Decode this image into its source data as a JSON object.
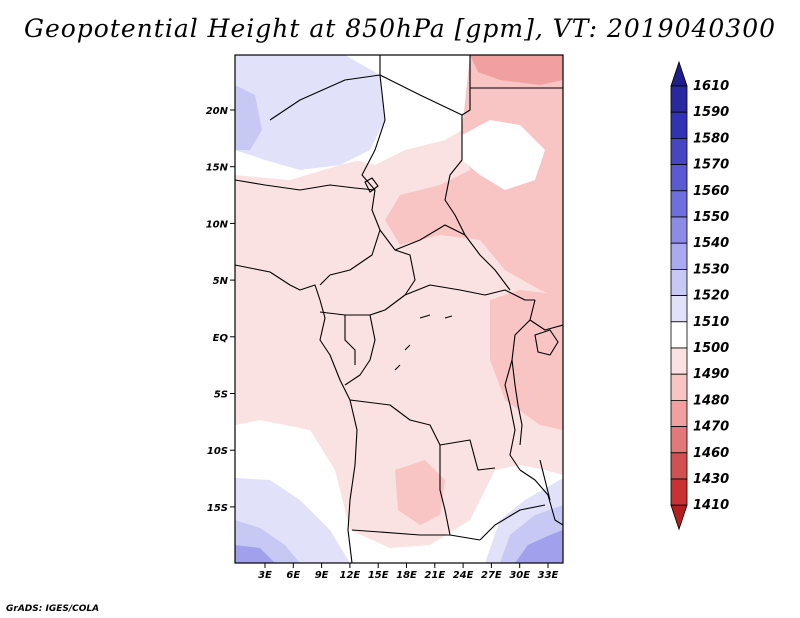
{
  "title": "Geopotential Height at 850hPa [gpm], VT: 2019040300",
  "credit": "GrADS: IGES/COLA",
  "map": {
    "variable": "Geopotential Height",
    "level": "850hPa",
    "units": "gpm",
    "valid_time": "2019040300",
    "lat_labels": [
      "20N",
      "15N",
      "10N",
      "5N",
      "EQ",
      "5S",
      "10S",
      "15S"
    ],
    "lon_labels": [
      "3E",
      "6E",
      "9E",
      "12E",
      "15E",
      "18E",
      "21E",
      "24E",
      "27E",
      "30E",
      "33E"
    ],
    "colors": {
      "ocean_white": "#ffffff",
      "blue_1520": "#e1e1fa",
      "blue_1530": "#c8c8f5",
      "blue_1540": "#a0a0ec",
      "pink_1500": "#fbe2e2",
      "pink_1490": "#f8c4c4",
      "pink_1480": "#f1a0a0",
      "borders": "#000000"
    }
  },
  "colorbar": {
    "labels": [
      "1610",
      "1590",
      "1580",
      "1570",
      "1560",
      "1550",
      "1540",
      "1530",
      "1520",
      "1510",
      "1500",
      "1490",
      "1480",
      "1470",
      "1460",
      "1430",
      "1410"
    ],
    "colors": [
      "#1e1e8c",
      "#2828a0",
      "#3232b4",
      "#4646c3",
      "#5a5ad2",
      "#6e6edc",
      "#8c8ce6",
      "#aaaaf0",
      "#c8c8f5",
      "#e1e1fa",
      "#ffffff",
      "#fbe2e2",
      "#f8c4c4",
      "#f1a0a0",
      "#e27878",
      "#d25050",
      "#c83232",
      "#b41e1e"
    ]
  }
}
